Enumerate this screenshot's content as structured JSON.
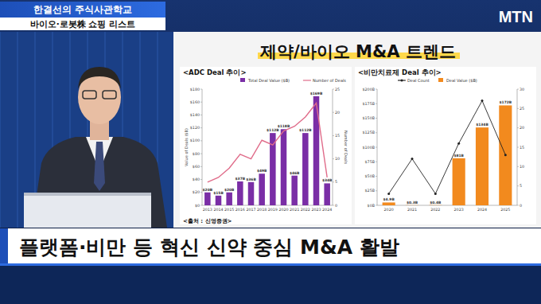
{
  "header": {
    "show_title": "한결선의 주식사관학교",
    "segment": "바이오·로봇株 쇼핑 리스트",
    "logo": "MTN"
  },
  "panel_title": "제약/바이오 M&A 트렌드",
  "caption": "플랫폼·비만 등 혁신 신약 중심 M&A 활발",
  "chart_data": [
    {
      "type": "bar",
      "title": "<ADC Deal 추이>",
      "categories": [
        "2013",
        "2014",
        "2015",
        "2016",
        "2017",
        "2018",
        "2019",
        "2020",
        "2021",
        "2022",
        "2023",
        "2024"
      ],
      "series": [
        {
          "name": "Total Deal Value ($B)",
          "type": "bar",
          "color": "#7a2ea6",
          "values": [
            20,
            15,
            20,
            37,
            36,
            49,
            112,
            118,
            46,
            112,
            169,
            34
          ],
          "value_labels": [
            "$20B",
            "$15B",
            "$20B",
            "$37B",
            "$36B",
            "$49B",
            "$112B",
            "$118B",
            "$46B",
            "$112B",
            "$169B",
            "$34B"
          ]
        },
        {
          "name": "Number of Deals",
          "type": "line",
          "axis": "y2",
          "color": "#e06c8a",
          "values": [
            5,
            6,
            8,
            11,
            10,
            14,
            13,
            16,
            17,
            19,
            22,
            6
          ]
        }
      ],
      "y_label": "Value of Deals ($B)",
      "y2_label": "Number of Deals",
      "ylim": [
        0,
        180
      ],
      "yticks": [
        {
          "value": 0,
          "label": "$0"
        },
        {
          "value": 20,
          "label": "$20"
        },
        {
          "value": 40,
          "label": "$40"
        },
        {
          "value": 60,
          "label": "$60"
        },
        {
          "value": 80,
          "label": "$80"
        },
        {
          "value": 100,
          "label": "$100"
        },
        {
          "value": 120,
          "label": "$120"
        },
        {
          "value": 140,
          "label": "$140"
        },
        {
          "value": 160,
          "label": "$160"
        },
        {
          "value": 180,
          "label": "$180"
        }
      ],
      "y2lim": [
        0,
        25
      ],
      "y2ticks": [
        0,
        5,
        10,
        15,
        20,
        25
      ],
      "data_labels": true,
      "grid": false,
      "legend": "top",
      "source": "<출처 : 신영증권>"
    },
    {
      "type": "bar",
      "title": "<비만치료제 Deal 추이>",
      "categories": [
        "2020",
        "2021",
        "2022",
        "2023",
        "2024",
        "2025"
      ],
      "series": [
        {
          "name": "Deal Count",
          "type": "line",
          "axis": "y2",
          "color": "#222222",
          "marker": "circle",
          "values": [
            3,
            12,
            3,
            16,
            27,
            13
          ]
        },
        {
          "name": "Deal Value ($B)",
          "type": "bar",
          "color": "#f28a1e",
          "values": [
            4.9,
            0.3,
            0.4,
            81,
            134,
            172
          ],
          "value_labels": [
            "$4.9B",
            "$0.3B",
            "$0.4B",
            "$81B",
            "$134B",
            "$172B"
          ]
        }
      ],
      "ylim": [
        0,
        200
      ],
      "yticks": [
        {
          "value": 0,
          "label": "$0B"
        },
        {
          "value": 25,
          "label": "$25B"
        },
        {
          "value": 50,
          "label": "$50B"
        },
        {
          "value": 75,
          "label": "$75B"
        },
        {
          "value": 100,
          "label": "$100B"
        },
        {
          "value": 125,
          "label": "$125B"
        },
        {
          "value": 150,
          "label": "$150B"
        },
        {
          "value": 175,
          "label": "$175B"
        },
        {
          "value": 200,
          "label": "$200B"
        }
      ],
      "y2lim": [
        0,
        30
      ],
      "y2ticks": [
        0,
        5,
        10,
        15,
        20,
        25,
        30
      ],
      "data_labels": true,
      "grid": false,
      "legend": "top"
    }
  ]
}
